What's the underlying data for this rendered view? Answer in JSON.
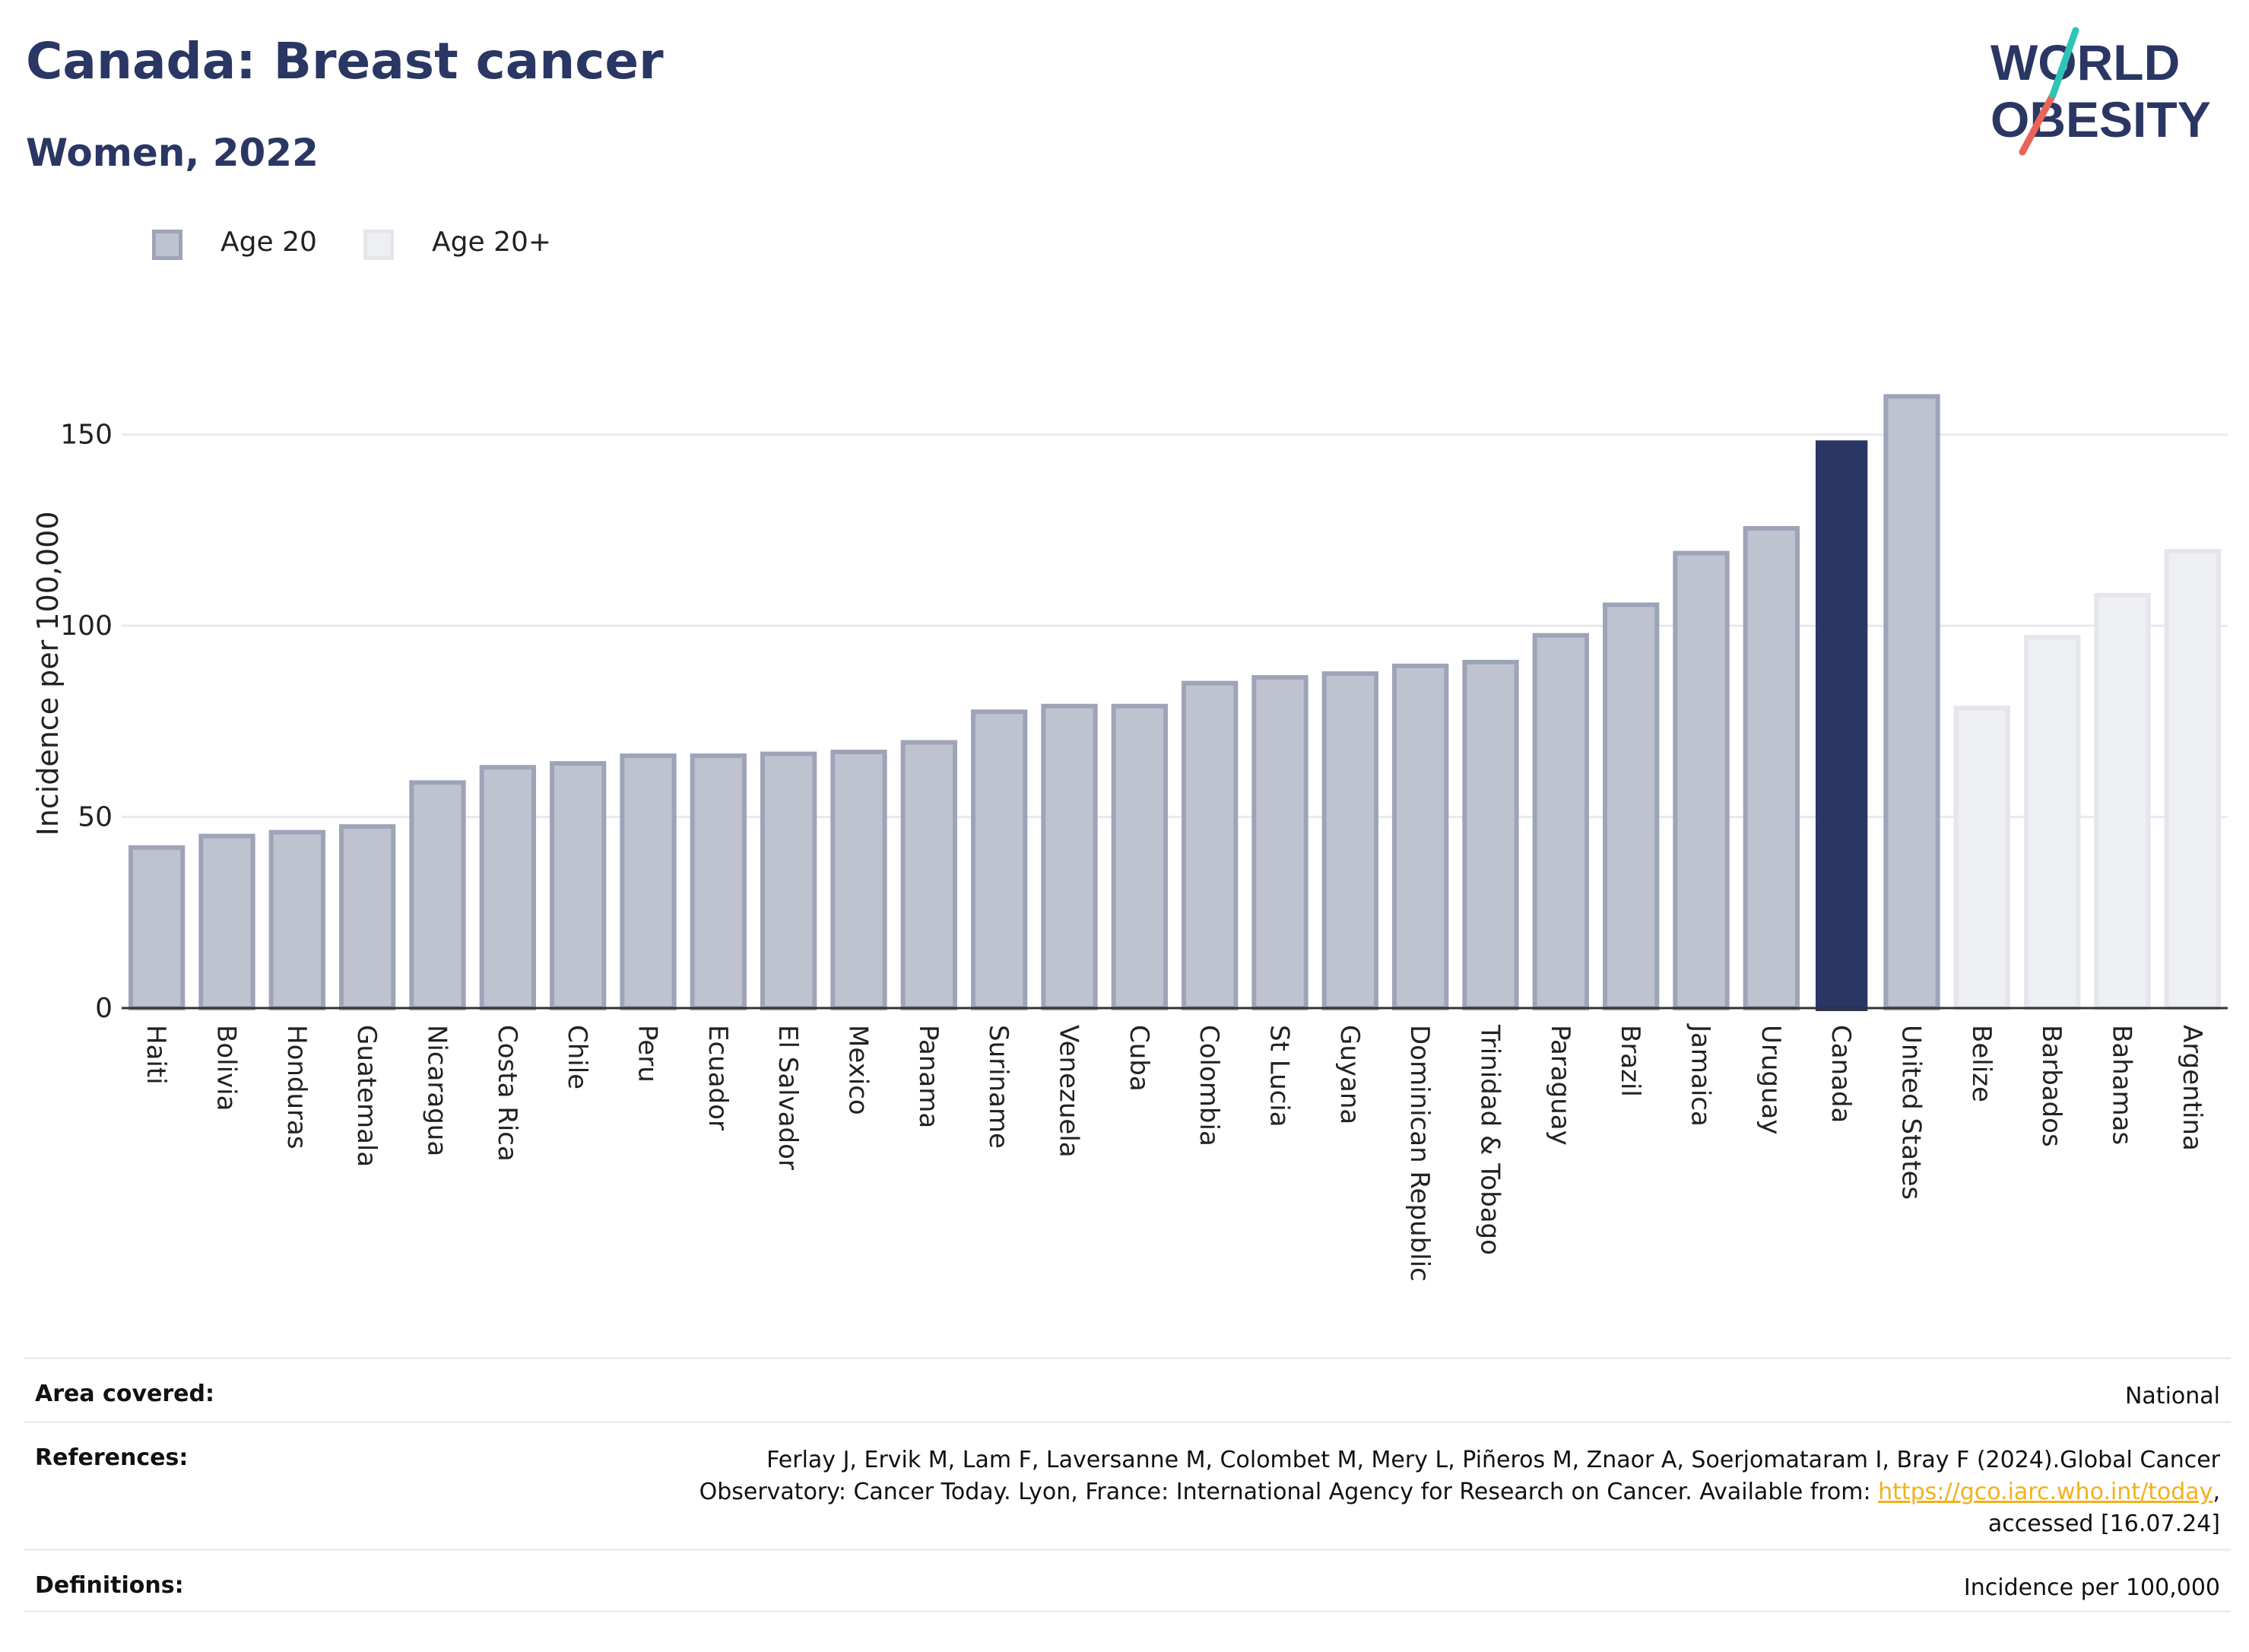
{
  "header": {
    "title": "Canada: Breast cancer",
    "subtitle": "Women, 2022"
  },
  "logo": {
    "line1": "WORLD",
    "line2": "OBESITY",
    "colors": {
      "text": "#2a3663",
      "slash_red": "#e8655a",
      "slash_teal": "#2ec4b6"
    }
  },
  "legend": [
    {
      "label": "Age 20",
      "color": "#bfc3d0",
      "border": "#9ea4b8"
    },
    {
      "label": "Age 20+",
      "color": "#eeeff3",
      "border": "#e4e6ec"
    }
  ],
  "colors": {
    "age20_fill": "#bfc3d0",
    "age20_border": "#9ea4b8",
    "age20plus_fill": "#eeeff3",
    "age20plus_border": "#e4e6ec",
    "highlight": "#2a3663",
    "grid": "#e8e9ef"
  },
  "chart_data": {
    "type": "bar",
    "ylabel": "Incidence per 100,000",
    "ylim": [
      0,
      175
    ],
    "yticks": [
      0,
      50,
      100,
      150
    ],
    "grid": true,
    "legend_position": "top-left",
    "categories": [
      "Haiti",
      "Bolivia",
      "Honduras",
      "Guatemala",
      "Nicaragua",
      "Costa Rica",
      "Chile",
      "Peru",
      "Ecuador",
      "El Salvador",
      "Mexico",
      "Panama",
      "Suriname",
      "Venezuela",
      "Cuba",
      "Colombia",
      "St Lucia",
      "Guyana",
      "Dominican Republic",
      "Trinidad & Tobago",
      "Paraguay",
      "Brazil",
      "Jamaica",
      "Uruguay",
      "Canada",
      "United States",
      "Belize",
      "Barbados",
      "Bahamas",
      "Argentina"
    ],
    "values": [
      42,
      45,
      46,
      47.5,
      59,
      63,
      64,
      66,
      66,
      66.5,
      67,
      69.5,
      77.5,
      79,
      79,
      85,
      86.5,
      87.5,
      89.5,
      90.5,
      97.5,
      105.5,
      119,
      125.5,
      148.5,
      160,
      78.5,
      97,
      108,
      119.5
    ],
    "groups": [
      "Age 20",
      "Age 20",
      "Age 20",
      "Age 20",
      "Age 20",
      "Age 20",
      "Age 20",
      "Age 20",
      "Age 20",
      "Age 20",
      "Age 20",
      "Age 20",
      "Age 20",
      "Age 20",
      "Age 20",
      "Age 20",
      "Age 20",
      "Age 20",
      "Age 20",
      "Age 20",
      "Age 20",
      "Age 20",
      "Age 20",
      "Age 20",
      "Age 20",
      "Age 20",
      "Age 20+",
      "Age 20+",
      "Age 20+",
      "Age 20+"
    ],
    "highlight": "Canada"
  },
  "footer": {
    "area_label": "Area covered:",
    "area_value": "National",
    "references_label": "References:",
    "references_text1": "Ferlay J, Ervik M, Lam F, Laversanne M, Colombet M, Mery L, Piñeros M, Znaor A, Soerjomataram I, Bray F (2024).Global Cancer",
    "references_text2": "Observatory: Cancer Today. Lyon, France: International Agency for Research on Cancer. Available from: ",
    "references_link": "https://gco.iarc.who.int/today",
    "references_text2_end": ",",
    "references_text3": "accessed [16.07.24]",
    "definitions_label": "Definitions:",
    "definitions_value": "Incidence per 100,000"
  }
}
